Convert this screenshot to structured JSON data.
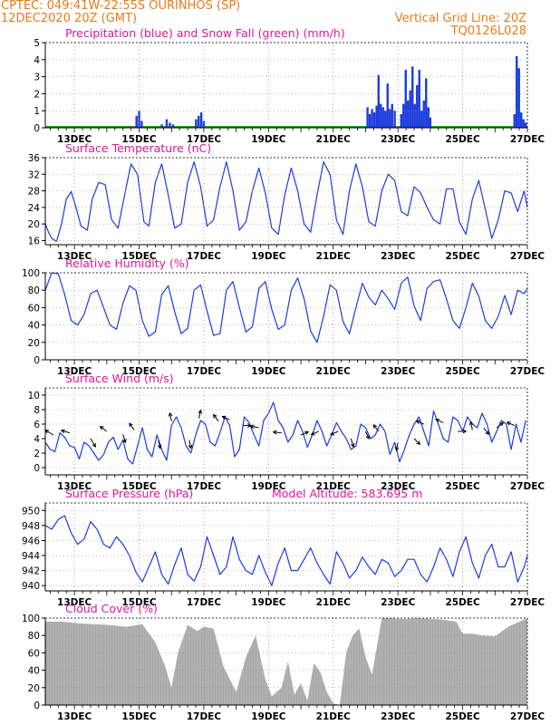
{
  "header": {
    "left1": "CPTEC:  049:41W-22:55S  OURINHOS (SP)",
    "left2": "12DEC2020 20Z (GMT)",
    "right1": "Vertical Grid Line: 20Z",
    "right2": "TQ0126L028"
  },
  "colors": {
    "header": "#e87a1c",
    "title": "#e0179a",
    "line": "#1c3cdc",
    "precip": "#1c3cdc",
    "snow": "#1aa51a",
    "cloud": "#a8a8a8",
    "grid": "#909090"
  },
  "x_axis": {
    "ticks": [
      "13DEC",
      "15DEC",
      "17DEC",
      "19DEC",
      "21DEC",
      "23DEC",
      "25DEC",
      "27DEC"
    ],
    "tick_days": [
      13,
      15,
      17,
      19,
      21,
      23,
      25,
      27
    ],
    "start_day": 12.1,
    "end_day": 27.0
  },
  "chart_data": [
    {
      "type": "bar",
      "title": "Precipitation (blue) and Snow Fall (green) (mm/h)",
      "ylim": [
        0,
        5
      ],
      "yticks": [
        "0",
        "1",
        "2",
        "3",
        "4",
        "5"
      ],
      "snow_value": 0,
      "x": [
        14.92,
        15.0,
        15.08,
        15.7,
        15.85,
        15.95,
        16.05,
        16.76,
        16.84,
        16.92,
        17.0,
        22.06,
        22.13,
        22.2,
        22.27,
        22.34,
        22.4,
        22.47,
        22.54,
        22.61,
        22.68,
        22.75,
        22.82,
        22.9,
        23.1,
        23.17,
        23.24,
        23.31,
        23.38,
        23.45,
        23.52,
        23.59,
        23.66,
        23.73,
        23.8,
        23.87,
        23.94,
        24.0,
        26.6,
        26.67,
        26.74,
        26.81,
        26.88,
        26.95
      ],
      "values": [
        0.7,
        1.0,
        0.4,
        0.2,
        0.5,
        0.3,
        0.2,
        0.5,
        0.7,
        0.9,
        0.4,
        1.2,
        0.8,
        1.1,
        0.9,
        1.3,
        3.1,
        1.4,
        1.2,
        1.0,
        2.6,
        1.1,
        1.4,
        1.0,
        0.8,
        1.4,
        3.4,
        1.6,
        2.2,
        3.6,
        1.4,
        2.5,
        3.4,
        1.0,
        1.6,
        2.9,
        1.2,
        0.6,
        0.8,
        4.2,
        3.5,
        0.9,
        0.5,
        0.3
      ]
    },
    {
      "type": "line",
      "title": "Surface Temperature (nC)",
      "ylim": [
        15,
        36
      ],
      "yticks": [
        "16",
        "20",
        "24",
        "28",
        "32",
        "36"
      ],
      "x": [
        12.1,
        12.2,
        12.3,
        12.45,
        12.6,
        12.75,
        12.9,
        13.05,
        13.2,
        13.4,
        13.55,
        13.75,
        13.95,
        14.15,
        14.35,
        14.55,
        14.75,
        14.95,
        15.15,
        15.3,
        15.5,
        15.7,
        15.9,
        16.1,
        16.3,
        16.5,
        16.7,
        16.9,
        17.1,
        17.3,
        17.5,
        17.7,
        17.9,
        18.1,
        18.3,
        18.5,
        18.7,
        18.9,
        19.1,
        19.3,
        19.5,
        19.7,
        19.9,
        20.1,
        20.3,
        20.5,
        20.7,
        20.9,
        21.1,
        21.3,
        21.5,
        21.7,
        21.9,
        22.1,
        22.3,
        22.5,
        22.7,
        22.9,
        23.1,
        23.3,
        23.5,
        23.7,
        23.9,
        24.1,
        24.3,
        24.5,
        24.7,
        24.9,
        25.1,
        25.3,
        25.5,
        25.7,
        25.9,
        26.1,
        26.3,
        26.5,
        26.7,
        26.9,
        27.0
      ],
      "values": [
        20,
        18,
        16.5,
        15.8,
        20,
        26,
        27.8,
        24,
        19.5,
        18.5,
        26,
        30,
        29.5,
        21,
        19,
        27,
        34.5,
        32,
        20.5,
        19.5,
        30,
        34.5,
        27,
        19,
        20,
        30,
        35,
        29,
        19.5,
        21,
        29,
        35,
        28,
        18.5,
        20.5,
        28,
        33.5,
        27.5,
        19,
        17.5,
        27,
        33.5,
        28,
        20,
        18,
        27,
        35,
        32,
        21,
        17.5,
        28,
        34.5,
        29,
        20.5,
        19.5,
        28,
        32,
        30.5,
        23,
        22,
        29,
        27.5,
        24,
        21,
        20,
        28.5,
        28.5,
        20.5,
        17.5,
        26,
        30.5,
        23.5,
        16.5,
        21,
        28,
        27.5,
        23,
        28,
        24
      ]
    },
    {
      "type": "line",
      "title": "Relative Humidity (%)",
      "ylim": [
        0,
        100
      ],
      "yticks": [
        "0",
        "20",
        "40",
        "60",
        "80",
        "100"
      ],
      "x": [
        12.1,
        12.3,
        12.5,
        12.7,
        12.9,
        13.1,
        13.3,
        13.5,
        13.7,
        13.9,
        14.1,
        14.3,
        14.5,
        14.7,
        14.9,
        15.1,
        15.3,
        15.5,
        15.7,
        15.9,
        16.1,
        16.3,
        16.5,
        16.7,
        16.9,
        17.1,
        17.3,
        17.5,
        17.7,
        17.9,
        18.1,
        18.3,
        18.5,
        18.7,
        18.9,
        19.1,
        19.3,
        19.5,
        19.7,
        19.9,
        20.1,
        20.3,
        20.5,
        20.7,
        20.9,
        21.1,
        21.3,
        21.5,
        21.7,
        21.9,
        22.1,
        22.3,
        22.5,
        22.7,
        22.9,
        23.1,
        23.3,
        23.5,
        23.7,
        23.9,
        24.1,
        24.3,
        24.5,
        24.7,
        24.9,
        25.1,
        25.3,
        25.5,
        25.7,
        25.9,
        26.1,
        26.3,
        26.5,
        26.7,
        26.9,
        27.0
      ],
      "values": [
        80,
        100,
        99,
        75,
        45,
        40,
        52,
        76,
        80,
        60,
        40,
        35,
        65,
        85,
        80,
        45,
        27,
        32,
        75,
        85,
        55,
        30,
        36,
        80,
        86,
        56,
        28,
        30,
        80,
        90,
        60,
        32,
        38,
        82,
        90,
        58,
        35,
        40,
        80,
        94,
        70,
        33,
        20,
        50,
        86,
        80,
        44,
        30,
        60,
        88,
        72,
        63,
        80,
        70,
        58,
        88,
        95,
        62,
        45,
        82,
        90,
        92,
        70,
        45,
        36,
        60,
        88,
        73,
        45,
        36,
        50,
        74,
        52,
        80,
        76,
        82
      ]
    },
    {
      "type": "line",
      "title": "Surface Wind (m/s)",
      "ylim": [
        -1,
        11
      ],
      "yticks": [
        "0",
        "2",
        "4",
        "6",
        "8",
        "10"
      ],
      "x": [
        12.1,
        12.25,
        12.4,
        12.55,
        12.7,
        12.85,
        13.0,
        13.15,
        13.3,
        13.45,
        13.6,
        13.75,
        13.9,
        14.05,
        14.2,
        14.35,
        14.5,
        14.65,
        14.8,
        14.95,
        15.1,
        15.25,
        15.4,
        15.55,
        15.7,
        15.85,
        16.0,
        16.15,
        16.3,
        16.45,
        16.6,
        16.75,
        16.9,
        17.05,
        17.2,
        17.35,
        17.5,
        17.65,
        17.8,
        17.95,
        18.1,
        18.25,
        18.4,
        18.55,
        18.7,
        18.85,
        19.0,
        19.15,
        19.3,
        19.45,
        19.6,
        19.75,
        19.9,
        20.05,
        20.2,
        20.35,
        20.5,
        20.65,
        20.8,
        20.95,
        21.1,
        21.25,
        21.4,
        21.55,
        21.7,
        21.85,
        22.0,
        22.15,
        22.3,
        22.45,
        22.6,
        22.75,
        22.9,
        23.05,
        23.2,
        23.35,
        23.5,
        23.65,
        23.8,
        23.95,
        24.1,
        24.25,
        24.4,
        24.55,
        24.7,
        24.85,
        25.0,
        25.15,
        25.3,
        25.45,
        25.6,
        25.75,
        25.9,
        26.05,
        26.2,
        26.35,
        26.5,
        26.65,
        26.8,
        26.95
      ],
      "values": [
        3.5,
        2.5,
        2.2,
        4.8,
        4.2,
        3.0,
        2.8,
        1.2,
        3.5,
        3.0,
        2.0,
        1.0,
        1.8,
        3.5,
        4.2,
        2.5,
        3.8,
        1.2,
        0.5,
        3.0,
        5.5,
        2.5,
        1.5,
        4.5,
        2.5,
        1.0,
        5.8,
        7.0,
        5.5,
        3.0,
        2.0,
        4.5,
        6.5,
        6.0,
        3.5,
        3.0,
        4.8,
        7.0,
        5.8,
        1.5,
        2.5,
        7.0,
        6.2,
        4.5,
        3.0,
        6.5,
        7.5,
        9.0,
        6.5,
        5.5,
        3.5,
        4.5,
        6.5,
        5.0,
        2.8,
        4.5,
        6.5,
        5.0,
        3.0,
        4.5,
        6.2,
        5.0,
        4.0,
        2.5,
        3.0,
        6.0,
        5.5,
        4.0,
        4.5,
        6.0,
        5.0,
        1.8,
        3.5,
        0.8,
        2.5,
        4.5,
        6.0,
        7.0,
        5.0,
        3.0,
        7.8,
        6.0,
        4.0,
        3.5,
        7.0,
        6.5,
        5.0,
        7.0,
        6.0,
        5.5,
        7.5,
        6.0,
        3.5,
        5.0,
        6.5,
        6.0,
        2.5,
        6.0,
        3.5,
        6.5
      ],
      "arrows": [
        {
          "x": 12.35,
          "y": 4.5,
          "u": -1,
          "v": 0.6
        },
        {
          "x": 12.85,
          "y": 4.8,
          "u": -1,
          "v": 0.3
        },
        {
          "x": 13.5,
          "y": 4.0,
          "u": 0.6,
          "v": -1
        },
        {
          "x": 14.0,
          "y": 5.0,
          "u": -0.8,
          "v": 0.6
        },
        {
          "x": 14.5,
          "y": 4.6,
          "u": 0.3,
          "v": -1
        },
        {
          "x": 14.85,
          "y": 5.2,
          "u": -0.6,
          "v": 0.8
        },
        {
          "x": 15.6,
          "y": 3.8,
          "u": 0.2,
          "v": -1
        },
        {
          "x": 16.0,
          "y": 6.4,
          "u": -0.2,
          "v": 1
        },
        {
          "x": 16.55,
          "y": 3.8,
          "u": 0.2,
          "v": -1
        },
        {
          "x": 16.85,
          "y": 6.8,
          "u": 0.2,
          "v": 1
        },
        {
          "x": 17.45,
          "y": 6.4,
          "u": -0.6,
          "v": 0.8
        },
        {
          "x": 17.8,
          "y": 6.6,
          "u": -0.9,
          "v": 0.4
        },
        {
          "x": 18.2,
          "y": 5.8,
          "u": 1,
          "v": 0
        },
        {
          "x": 18.7,
          "y": 5.5,
          "u": -1,
          "v": 0.2
        },
        {
          "x": 19.4,
          "y": 4.8,
          "u": -1,
          "v": 0.1
        },
        {
          "x": 20.0,
          "y": 4.5,
          "u": 0.9,
          "v": 0.4
        },
        {
          "x": 20.55,
          "y": 5.0,
          "u": -0.9,
          "v": -0.4
        },
        {
          "x": 21.15,
          "y": 5.0,
          "u": -0.9,
          "v": -0.4
        },
        {
          "x": 21.55,
          "y": 4.0,
          "u": 0.3,
          "v": -1
        },
        {
          "x": 22.0,
          "y": 5.0,
          "u": 0.4,
          "v": -0.9
        },
        {
          "x": 22.4,
          "y": 5.0,
          "u": -0.6,
          "v": 0.8
        },
        {
          "x": 23.0,
          "y": 3.5,
          "u": -0.2,
          "v": -1
        },
        {
          "x": 23.5,
          "y": 4.0,
          "u": 0.7,
          "v": -0.7
        },
        {
          "x": 23.8,
          "y": 6.0,
          "u": -0.9,
          "v": 0.4
        },
        {
          "x": 24.4,
          "y": 6.2,
          "u": -0.9,
          "v": 0.4
        },
        {
          "x": 24.85,
          "y": 5.0,
          "u": 1,
          "v": 0
        },
        {
          "x": 25.3,
          "y": 5.2,
          "u": -0.2,
          "v": 1
        },
        {
          "x": 25.65,
          "y": 5.5,
          "u": 0.6,
          "v": -0.8
        },
        {
          "x": 26.05,
          "y": 5.5,
          "u": 0.8,
          "v": 0.6
        },
        {
          "x": 26.6,
          "y": 5.8,
          "u": -0.9,
          "v": 0.4
        }
      ]
    },
    {
      "type": "line",
      "title": "Surface Pressure (hPa)",
      "subtitle": "Model Altitude: 583.695 m",
      "ylim": [
        939.3,
        951
      ],
      "yticks": [
        "940",
        "942",
        "944",
        "946",
        "948",
        "950"
      ],
      "x": [
        12.1,
        12.3,
        12.5,
        12.7,
        12.9,
        13.1,
        13.3,
        13.5,
        13.7,
        13.9,
        14.1,
        14.3,
        14.5,
        14.7,
        14.9,
        15.1,
        15.3,
        15.5,
        15.7,
        15.9,
        16.1,
        16.3,
        16.5,
        16.7,
        16.9,
        17.1,
        17.3,
        17.5,
        17.7,
        17.9,
        18.1,
        18.3,
        18.5,
        18.7,
        18.9,
        19.1,
        19.3,
        19.5,
        19.7,
        19.9,
        20.1,
        20.3,
        20.5,
        20.7,
        20.9,
        21.1,
        21.3,
        21.5,
        21.7,
        21.9,
        22.1,
        22.3,
        22.5,
        22.7,
        22.9,
        23.1,
        23.3,
        23.5,
        23.7,
        23.9,
        24.1,
        24.3,
        24.5,
        24.7,
        24.9,
        25.1,
        25.3,
        25.5,
        25.7,
        25.9,
        26.1,
        26.3,
        26.5,
        26.7,
        26.9,
        27.0
      ],
      "values": [
        948,
        947.5,
        948.8,
        949.3,
        947,
        945.5,
        946.2,
        948.5,
        947.5,
        945.5,
        945,
        946.5,
        945.5,
        944,
        941.8,
        940.5,
        942.5,
        944.5,
        941.5,
        940.2,
        942.8,
        945,
        941.5,
        940.6,
        942.5,
        946.5,
        944,
        941.5,
        942.5,
        946.5,
        943.5,
        942,
        941.5,
        944,
        941.8,
        940,
        943,
        945,
        942,
        942,
        943.5,
        945,
        943,
        941.5,
        940.2,
        944.5,
        943,
        941,
        942,
        943.8,
        942.5,
        941.5,
        943.5,
        943,
        941.2,
        942,
        943.5,
        943.5,
        941.5,
        940.5,
        942.5,
        945,
        943.5,
        941.2,
        944.5,
        946.5,
        943,
        941,
        944,
        945.5,
        942.5,
        942.5,
        944.5,
        940.5,
        942.5,
        944
      ]
    },
    {
      "type": "area",
      "title": "Cloud Cover (%)",
      "ylim": [
        0,
        100
      ],
      "yticks": [
        "0",
        "20",
        "40",
        "60",
        "80",
        "100"
      ],
      "x": [
        12.1,
        12.6,
        13.1,
        13.6,
        14.1,
        14.6,
        15.1,
        15.5,
        15.8,
        16.0,
        16.2,
        16.5,
        16.8,
        17.0,
        17.3,
        17.6,
        17.8,
        18.0,
        18.3,
        18.6,
        18.9,
        19.1,
        19.4,
        19.6,
        19.8,
        20.0,
        20.2,
        20.4,
        20.6,
        20.8,
        21.0,
        21.2,
        21.4,
        21.6,
        21.8,
        22.0,
        22.2,
        22.5,
        22.8,
        23.0,
        23.3,
        23.6,
        24.0,
        24.4,
        24.8,
        25.0,
        25.3,
        25.6,
        26.0,
        26.4,
        26.7,
        27.0
      ],
      "values": [
        96,
        96,
        94,
        93,
        92,
        90,
        93,
        72,
        45,
        20,
        60,
        92,
        85,
        90,
        88,
        45,
        30,
        15,
        55,
        80,
        30,
        10,
        20,
        50,
        12,
        25,
        5,
        48,
        38,
        15,
        2,
        0,
        60,
        80,
        88,
        55,
        35,
        100,
        100,
        99,
        99,
        100,
        99,
        98,
        96,
        82,
        82,
        80,
        79,
        90,
        95,
        100
      ]
    }
  ]
}
